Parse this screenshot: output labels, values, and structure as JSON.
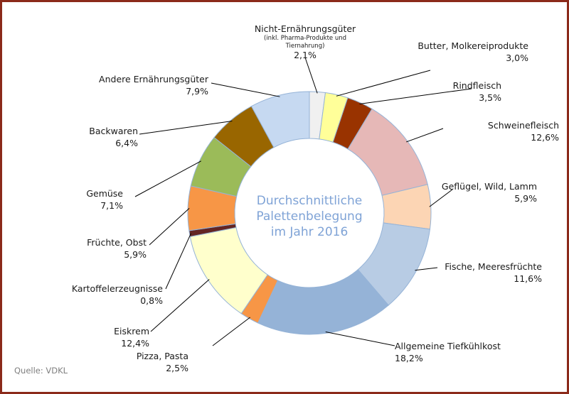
{
  "chart_data": {
    "type": "pie",
    "variant": "donut",
    "center_text": [
      "Durchschnittliche",
      "Palettenbelegung",
      "im Jahr 2016"
    ],
    "start": "top",
    "direction": "clockwise",
    "slices": [
      {
        "label": "Nicht-Ernährungsgüter",
        "note": [
          "(inkl. Pharma-Produkte und",
          "Tiernahrung)"
        ],
        "value": 2.1,
        "value_label": "2,1%",
        "color": "#f0f0f0"
      },
      {
        "label": "Butter, Molkereiprodukte",
        "value": 3.0,
        "value_label": "3,0%",
        "color": "#ffff99"
      },
      {
        "label": "Rindfleisch",
        "value": 3.5,
        "value_label": "3,5%",
        "color": "#993300"
      },
      {
        "label": "Schweinefleisch",
        "value": 12.6,
        "value_label": "12,6%",
        "color": "#e6b8b7"
      },
      {
        "label": "Geflügel, Wild, Lamm",
        "value": 5.9,
        "value_label": "5,9%",
        "color": "#fcd5b4"
      },
      {
        "label": "Fische, Meeresfrüchte",
        "value": 11.6,
        "value_label": "11,6%",
        "color": "#b8cce4"
      },
      {
        "label": "Allgemeine Tiefkühlkost",
        "value": 18.2,
        "value_label": "18,2%",
        "color": "#95b3d7"
      },
      {
        "label": "Pizza, Pasta",
        "value": 2.5,
        "value_label": "2,5%",
        "color": "#f79646"
      },
      {
        "label": "Eiskrem",
        "value": 12.4,
        "value_label": "12,4%",
        "color": "#ffffcc"
      },
      {
        "label": "Kartoffelerzeugnisse",
        "value": 0.8,
        "value_label": "0,8%",
        "color": "#632523"
      },
      {
        "label": "Früchte, Obst",
        "value": 5.9,
        "value_label": "5,9%",
        "color": "#f79646"
      },
      {
        "label": "Gemüse",
        "value": 7.1,
        "value_label": "7,1%",
        "color": "#9bbb59"
      },
      {
        "label": "Backwaren",
        "value": 6.4,
        "value_label": "6,4%",
        "color": "#996600"
      },
      {
        "label": "Andere Ernährungsgüter",
        "value": 7.9,
        "value_label": "7,9%",
        "color": "#c6d9f1"
      }
    ],
    "source": "Quelle: VDKL",
    "frame_color": "#8b2a1a",
    "slice_border_color": "#95b3d7",
    "center_text_color": "#7fa3d6"
  }
}
